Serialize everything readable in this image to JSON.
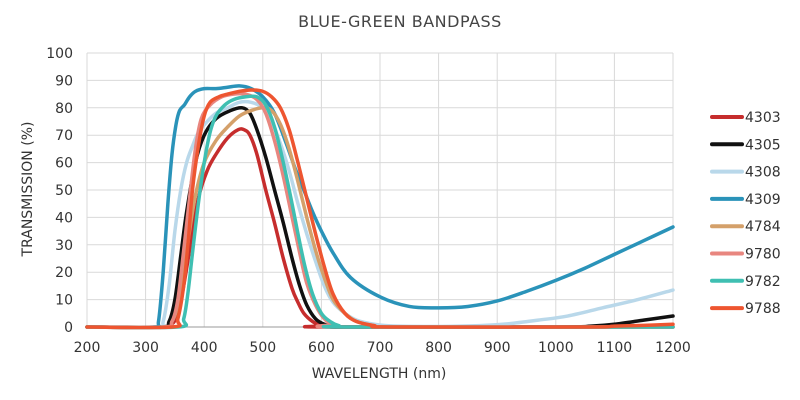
{
  "chart_data": {
    "type": "line",
    "title": "BLUE-GREEN BANDPASS",
    "xlabel": "WAVELENGTH (nm)",
    "ylabel": "TRANSMISSION (%)",
    "xlim": [
      200,
      1200
    ],
    "ylim": [
      0,
      100
    ],
    "xticks": [
      200,
      300,
      400,
      500,
      600,
      700,
      800,
      900,
      1000,
      1100,
      1200
    ],
    "yticks": [
      0,
      10,
      20,
      30,
      40,
      50,
      60,
      70,
      80,
      90,
      100
    ],
    "grid": true,
    "legend_position": "right",
    "series": [
      {
        "name": "4303",
        "color": "#c62d2d",
        "points": [
          [
            200,
            0
          ],
          [
            330,
            0
          ],
          [
            345,
            1
          ],
          [
            355,
            5
          ],
          [
            365,
            15
          ],
          [
            378,
            32
          ],
          [
            390,
            47
          ],
          [
            405,
            57
          ],
          [
            420,
            63
          ],
          [
            440,
            69
          ],
          [
            458,
            72
          ],
          [
            468,
            72
          ],
          [
            478,
            70
          ],
          [
            490,
            63
          ],
          [
            505,
            50
          ],
          [
            520,
            38
          ],
          [
            535,
            25
          ],
          [
            550,
            14
          ],
          [
            560,
            9
          ],
          [
            570,
            5
          ],
          [
            585,
            2
          ],
          [
            600,
            0.5
          ],
          [
            620,
            0
          ],
          [
            1200,
            0
          ]
        ]
      },
      {
        "name": "4305",
        "color": "#111111",
        "points": [
          [
            200,
            0
          ],
          [
            325,
            0
          ],
          [
            340,
            2
          ],
          [
            350,
            10
          ],
          [
            360,
            26
          ],
          [
            370,
            42
          ],
          [
            385,
            60
          ],
          [
            400,
            70
          ],
          [
            420,
            76
          ],
          [
            445,
            79
          ],
          [
            465,
            80
          ],
          [
            478,
            78
          ],
          [
            490,
            72
          ],
          [
            505,
            62
          ],
          [
            520,
            50
          ],
          [
            535,
            38
          ],
          [
            550,
            25
          ],
          [
            563,
            15
          ],
          [
            575,
            8
          ],
          [
            590,
            3
          ],
          [
            605,
            1
          ],
          [
            620,
            0.3
          ],
          [
            650,
            0
          ],
          [
            1000,
            0
          ],
          [
            1060,
            0.3
          ],
          [
            1100,
            1
          ],
          [
            1150,
            2.5
          ],
          [
            1200,
            4
          ]
        ]
      },
      {
        "name": "4308",
        "color": "#b9d8ea",
        "points": [
          [
            200,
            0
          ],
          [
            320,
            0
          ],
          [
            330,
            2
          ],
          [
            340,
            15
          ],
          [
            350,
            35
          ],
          [
            360,
            50
          ],
          [
            370,
            60
          ],
          [
            380,
            66
          ],
          [
            390,
            71
          ],
          [
            405,
            75
          ],
          [
            420,
            78
          ],
          [
            440,
            80
          ],
          [
            460,
            82
          ],
          [
            480,
            82
          ],
          [
            500,
            80
          ],
          [
            515,
            75
          ],
          [
            530,
            67
          ],
          [
            545,
            57
          ],
          [
            560,
            45
          ],
          [
            575,
            34
          ],
          [
            590,
            24
          ],
          [
            605,
            15
          ],
          [
            620,
            9
          ],
          [
            640,
            5
          ],
          [
            660,
            2.5
          ],
          [
            690,
            1
          ],
          [
            730,
            0.3
          ],
          [
            800,
            0.2
          ],
          [
            870,
            0.5
          ],
          [
            920,
            1.2
          ],
          [
            970,
            2.5
          ],
          [
            1020,
            4
          ],
          [
            1080,
            7
          ],
          [
            1140,
            10
          ],
          [
            1200,
            13.5
          ]
        ]
      },
      {
        "name": "4309",
        "color": "#2a93b9",
        "points": [
          [
            200,
            0
          ],
          [
            315,
            0
          ],
          [
            322,
            2
          ],
          [
            330,
            20
          ],
          [
            338,
            45
          ],
          [
            345,
            63
          ],
          [
            352,
            74
          ],
          [
            358,
            79
          ],
          [
            366,
            81
          ],
          [
            375,
            84
          ],
          [
            385,
            86
          ],
          [
            400,
            87
          ],
          [
            420,
            87
          ],
          [
            440,
            87.5
          ],
          [
            460,
            88
          ],
          [
            480,
            87
          ],
          [
            500,
            84
          ],
          [
            520,
            78
          ],
          [
            540,
            67
          ],
          [
            555,
            58
          ],
          [
            570,
            50
          ],
          [
            585,
            42
          ],
          [
            600,
            35
          ],
          [
            620,
            27
          ],
          [
            650,
            18
          ],
          [
            700,
            11
          ],
          [
            750,
            7.5
          ],
          [
            800,
            7
          ],
          [
            850,
            7.5
          ],
          [
            900,
            9.5
          ],
          [
            950,
            13
          ],
          [
            1000,
            17
          ],
          [
            1050,
            21.5
          ],
          [
            1100,
            26.5
          ],
          [
            1150,
            31.5
          ],
          [
            1200,
            36.5
          ]
        ]
      },
      {
        "name": "4784",
        "color": "#d4a06a",
        "points": [
          [
            200,
            0
          ],
          [
            330,
            0
          ],
          [
            345,
            2
          ],
          [
            355,
            8
          ],
          [
            365,
            20
          ],
          [
            375,
            35
          ],
          [
            385,
            48
          ],
          [
            400,
            60
          ],
          [
            420,
            68
          ],
          [
            440,
            73
          ],
          [
            460,
            77
          ],
          [
            480,
            79
          ],
          [
            500,
            80
          ],
          [
            515,
            79
          ],
          [
            530,
            74
          ],
          [
            545,
            65
          ],
          [
            560,
            53
          ],
          [
            575,
            40
          ],
          [
            590,
            28
          ],
          [
            605,
            18
          ],
          [
            620,
            10
          ],
          [
            640,
            5
          ],
          [
            660,
            2
          ],
          [
            690,
            0.5
          ],
          [
            720,
            0
          ],
          [
            1200,
            0
          ]
        ]
      },
      {
        "name": "9780",
        "color": "#e8867f",
        "points": [
          [
            200,
            0
          ],
          [
            330,
            0
          ],
          [
            345,
            2
          ],
          [
            355,
            10
          ],
          [
            365,
            28
          ],
          [
            375,
            47
          ],
          [
            385,
            65
          ],
          [
            395,
            76
          ],
          [
            410,
            81
          ],
          [
            430,
            84
          ],
          [
            450,
            85
          ],
          [
            470,
            85
          ],
          [
            490,
            83
          ],
          [
            505,
            78
          ],
          [
            520,
            68
          ],
          [
            535,
            55
          ],
          [
            550,
            40
          ],
          [
            563,
            27
          ],
          [
            575,
            16
          ],
          [
            590,
            8
          ],
          [
            605,
            3
          ],
          [
            620,
            1
          ],
          [
            640,
            0
          ],
          [
            1200,
            0
          ]
        ]
      },
      {
        "name": "9782",
        "color": "#3fbfb2",
        "points": [
          [
            200,
            0
          ],
          [
            355,
            0
          ],
          [
            365,
            3
          ],
          [
            372,
            12
          ],
          [
            380,
            27
          ],
          [
            390,
            45
          ],
          [
            400,
            60
          ],
          [
            410,
            71
          ],
          [
            420,
            77
          ],
          [
            435,
            81
          ],
          [
            450,
            83
          ],
          [
            470,
            84
          ],
          [
            490,
            84
          ],
          [
            505,
            81
          ],
          [
            520,
            73
          ],
          [
            535,
            60
          ],
          [
            548,
            47
          ],
          [
            560,
            34
          ],
          [
            572,
            22
          ],
          [
            585,
            12
          ],
          [
            600,
            5
          ],
          [
            615,
            2
          ],
          [
            630,
            0.5
          ],
          [
            650,
            0
          ],
          [
            1200,
            0
          ]
        ]
      },
      {
        "name": "9788",
        "color": "#ee5530",
        "points": [
          [
            200,
            0
          ],
          [
            345,
            0
          ],
          [
            355,
            3
          ],
          [
            365,
            15
          ],
          [
            373,
            32
          ],
          [
            380,
            50
          ],
          [
            390,
            66
          ],
          [
            400,
            77
          ],
          [
            410,
            82
          ],
          [
            425,
            84
          ],
          [
            440,
            85
          ],
          [
            460,
            86
          ],
          [
            480,
            86.5
          ],
          [
            500,
            86
          ],
          [
            515,
            84
          ],
          [
            530,
            80
          ],
          [
            545,
            72
          ],
          [
            560,
            60
          ],
          [
            575,
            47
          ],
          [
            590,
            34
          ],
          [
            605,
            22
          ],
          [
            620,
            12
          ],
          [
            640,
            5
          ],
          [
            660,
            2
          ],
          [
            690,
            0.5
          ],
          [
            720,
            0
          ],
          [
            1050,
            0
          ],
          [
            1100,
            0.3
          ],
          [
            1150,
            0.6
          ],
          [
            1200,
            1
          ]
        ]
      }
    ]
  }
}
